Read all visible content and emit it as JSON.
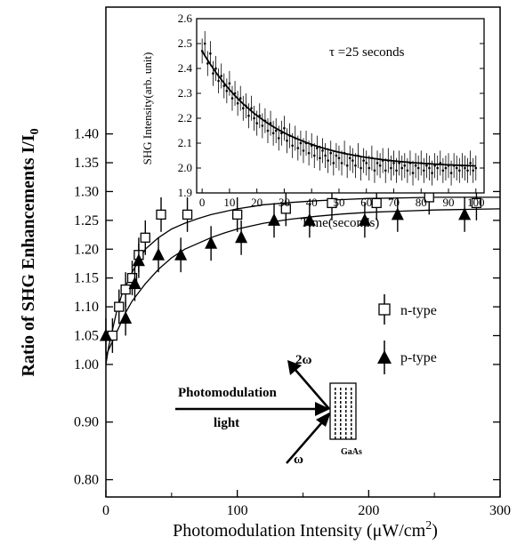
{
  "chart_data": [
    {
      "type": "scatter",
      "title": "",
      "xlabel": "Photomodulation Intensity (μW/cm²)",
      "xlabel_parts": {
        "pre": "Photomodulation Intensity (",
        "mu": "μ",
        "unit": "W/cm",
        "exp": "2",
        "post": ")"
      },
      "ylabel": "Ratio of SHG Enhancements I/I0",
      "ylabel_parts": {
        "main": "Ratio of SHG Enhancements I/I",
        "sub": "0"
      },
      "xlim": [
        0,
        300
      ],
      "ylim": [
        0.77,
        1.62
      ],
      "xticks": [
        "0",
        "100",
        "200",
        "300"
      ],
      "xtick_values": [
        0,
        100,
        200,
        300
      ],
      "yticks": [
        "0.80",
        "0.90",
        "1.00",
        "1.05",
        "1.10",
        "1.15",
        "1.20",
        "1.25",
        "1.30",
        "1.35",
        "1.40"
      ],
      "ytick_values": [
        0.8,
        0.9,
        1.0,
        1.05,
        1.1,
        1.15,
        1.2,
        1.25,
        1.3,
        1.35,
        1.4
      ],
      "series": [
        {
          "name": "n-type",
          "marker": "open-square",
          "x": [
            5,
            10,
            15,
            20,
            25,
            30,
            42,
            62,
            100,
            137,
            172,
            206,
            246,
            282
          ],
          "y": [
            1.05,
            1.1,
            1.13,
            1.15,
            1.19,
            1.22,
            1.26,
            1.26,
            1.26,
            1.27,
            1.28,
            1.28,
            1.29,
            1.28
          ],
          "err": [
            0.03,
            0.03,
            0.03,
            0.03,
            0.03,
            0.03,
            0.03,
            0.03,
            0.03,
            0.03,
            0.03,
            0.03,
            0.03,
            0.03
          ]
        },
        {
          "name": "p-type",
          "marker": "filled-triangle",
          "x": [
            0,
            15,
            22,
            25,
            40,
            57,
            80,
            103,
            128,
            155,
            197,
            222,
            273
          ],
          "y": [
            1.05,
            1.08,
            1.14,
            1.18,
            1.19,
            1.19,
            1.21,
            1.22,
            1.25,
            1.25,
            1.25,
            1.26,
            1.26
          ],
          "err": [
            0.03,
            0.03,
            0.03,
            0.03,
            0.03,
            0.03,
            0.03,
            0.03,
            0.03,
            0.03,
            0.03,
            0.03,
            0.03
          ]
        }
      ],
      "fit_curves": [
        {
          "for": "n-type",
          "x": [
            0,
            2,
            5,
            8,
            12,
            16,
            20,
            25,
            30,
            35,
            40,
            50,
            60,
            70,
            80,
            90,
            100,
            120,
            140,
            160,
            180,
            200,
            225,
            250,
            275,
            300
          ],
          "y": [
            1.0,
            1.03,
            1.06,
            1.09,
            1.12,
            1.14,
            1.16,
            1.18,
            1.2,
            1.21,
            1.22,
            1.235,
            1.245,
            1.253,
            1.26,
            1.265,
            1.27,
            1.277,
            1.281,
            1.284,
            1.286,
            1.288,
            1.289,
            1.29,
            1.29,
            1.29
          ]
        },
        {
          "for": "p-type",
          "x": [
            0,
            5,
            10,
            15,
            20,
            25,
            30,
            40,
            50,
            60,
            70,
            80,
            90,
            100,
            120,
            140,
            160,
            180,
            200,
            225,
            250,
            275,
            300
          ],
          "y": [
            1.015,
            1.04,
            1.065,
            1.09,
            1.11,
            1.125,
            1.14,
            1.165,
            1.185,
            1.2,
            1.21,
            1.22,
            1.228,
            1.235,
            1.245,
            1.252,
            1.257,
            1.261,
            1.264,
            1.266,
            1.268,
            1.269,
            1.27
          ]
        }
      ],
      "legend": {
        "placement": "right",
        "entries": [
          "n-type",
          "p-type"
        ]
      },
      "annotations": {
        "photomodulation": "Photomodulation",
        "light": "light",
        "two_omega": "2ω",
        "omega": "ω",
        "gaas": "GaAs"
      }
    },
    {
      "type": "line",
      "title": "",
      "annotation": "τ =25 seconds",
      "xlabel": "Time(seconds)",
      "ylabel": "SHG Intensity(arb. unit)",
      "xlim": [
        -2,
        103
      ],
      "ylim": [
        1.9,
        2.6
      ],
      "xticks": [
        "0",
        "10",
        "20",
        "30",
        "40",
        "50",
        "60",
        "70",
        "80",
        "90",
        "100"
      ],
      "xtick_values": [
        0,
        10,
        20,
        30,
        40,
        50,
        60,
        70,
        80,
        90,
        100
      ],
      "yticks": [
        "1.9",
        "2.0",
        "2.1",
        "2.2",
        "2.3",
        "2.4",
        "2.5",
        "2.6"
      ],
      "ytick_values": [
        1.9,
        2.0,
        2.1,
        2.2,
        2.3,
        2.4,
        2.5,
        2.6
      ],
      "fit": {
        "model": "exponential decay",
        "y0": 2.0,
        "amplitude": 0.47,
        "tau": 25
      },
      "data_x": [
        0,
        1,
        2,
        3,
        4,
        5,
        6,
        7,
        8,
        9,
        10,
        11,
        12,
        13,
        14,
        15,
        16,
        17,
        18,
        19,
        20,
        21,
        22,
        23,
        24,
        25,
        26,
        27,
        28,
        29,
        30,
        31,
        32,
        33,
        34,
        35,
        36,
        37,
        38,
        39,
        40,
        41,
        42,
        43,
        44,
        45,
        46,
        47,
        48,
        49,
        50,
        51,
        52,
        53,
        54,
        55,
        56,
        57,
        58,
        59,
        60,
        61,
        62,
        63,
        64,
        65,
        66,
        67,
        68,
        69,
        70,
        71,
        72,
        73,
        74,
        75,
        76,
        77,
        78,
        79,
        80,
        81,
        82,
        83,
        84,
        85,
        86,
        87,
        88,
        89,
        90,
        91,
        92,
        93,
        94,
        95,
        96,
        97,
        98,
        99,
        100
      ],
      "data_y": [
        2.47,
        2.5,
        2.42,
        2.46,
        2.38,
        2.4,
        2.35,
        2.37,
        2.33,
        2.31,
        2.34,
        2.28,
        2.3,
        2.26,
        2.28,
        2.24,
        2.25,
        2.21,
        2.24,
        2.2,
        2.18,
        2.21,
        2.17,
        2.19,
        2.15,
        2.18,
        2.14,
        2.15,
        2.12,
        2.14,
        2.16,
        2.11,
        2.13,
        2.09,
        2.12,
        2.08,
        2.1,
        2.07,
        2.1,
        2.06,
        2.09,
        2.05,
        2.08,
        2.04,
        2.07,
        2.05,
        2.03,
        2.06,
        2.02,
        2.05,
        2.04,
        2.02,
        2.06,
        2.01,
        2.04,
        2.03,
        2.01,
        2.05,
        2.0,
        2.03,
        2.02,
        2.0,
        2.04,
        1.99,
        2.02,
        2.01,
        2.03,
        1.99,
        2.03,
        2.0,
        2.02,
        1.99,
        2.02,
        2.0,
        2.01,
        1.99,
        2.02,
        1.98,
        2.01,
        2.0,
        2.02,
        1.99,
        2.01,
        2.0,
        1.98,
        2.01,
        2.0,
        2.02,
        1.99,
        2.0,
        2.01,
        1.98,
        2.01,
        2.0,
        1.99,
        2.01,
        2.0,
        1.99,
        2.02,
        1.99,
        2.0
      ],
      "err": 0.05
    }
  ]
}
